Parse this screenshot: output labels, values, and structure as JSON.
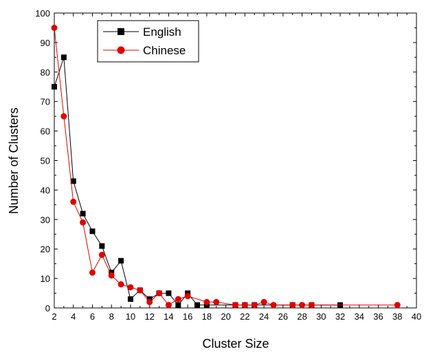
{
  "chart_data": {
    "type": "line",
    "title": "",
    "xlabel": "Cluster Size",
    "ylabel": "Number of Clusters",
    "xlim": [
      2,
      40
    ],
    "ylim": [
      0,
      100
    ],
    "xticks": [
      2,
      4,
      6,
      8,
      10,
      12,
      14,
      16,
      18,
      20,
      22,
      24,
      26,
      28,
      30,
      32,
      34,
      36,
      38,
      40
    ],
    "yticks": [
      0,
      10,
      20,
      30,
      40,
      50,
      60,
      70,
      80,
      90,
      100
    ],
    "grid": false,
    "legend_position": "top-left",
    "series": [
      {
        "name": "English",
        "color": "#000000",
        "marker": "square",
        "x": [
          2,
          3,
          4,
          5,
          6,
          7,
          8,
          9,
          10,
          11,
          12,
          13,
          14,
          15,
          16,
          17,
          18,
          21,
          22,
          23,
          27,
          29,
          32
        ],
        "y": [
          75,
          85,
          43,
          32,
          26,
          21,
          12,
          16,
          3,
          6,
          3,
          5,
          5,
          1,
          5,
          1,
          1,
          1,
          1,
          1,
          1,
          1,
          1
        ]
      },
      {
        "name": "Chinese",
        "color": "#e00000",
        "marker": "circle",
        "x": [
          2,
          3,
          4,
          5,
          6,
          7,
          8,
          9,
          10,
          11,
          12,
          13,
          14,
          15,
          16,
          18,
          19,
          21,
          22,
          23,
          24,
          25,
          27,
          28,
          29,
          38
        ],
        "y": [
          95,
          65,
          36,
          29,
          12,
          18,
          11,
          8,
          7,
          6,
          2,
          5,
          1,
          3,
          4,
          2,
          2,
          1,
          1,
          1,
          2,
          1,
          1,
          1,
          1,
          1
        ]
      }
    ]
  }
}
